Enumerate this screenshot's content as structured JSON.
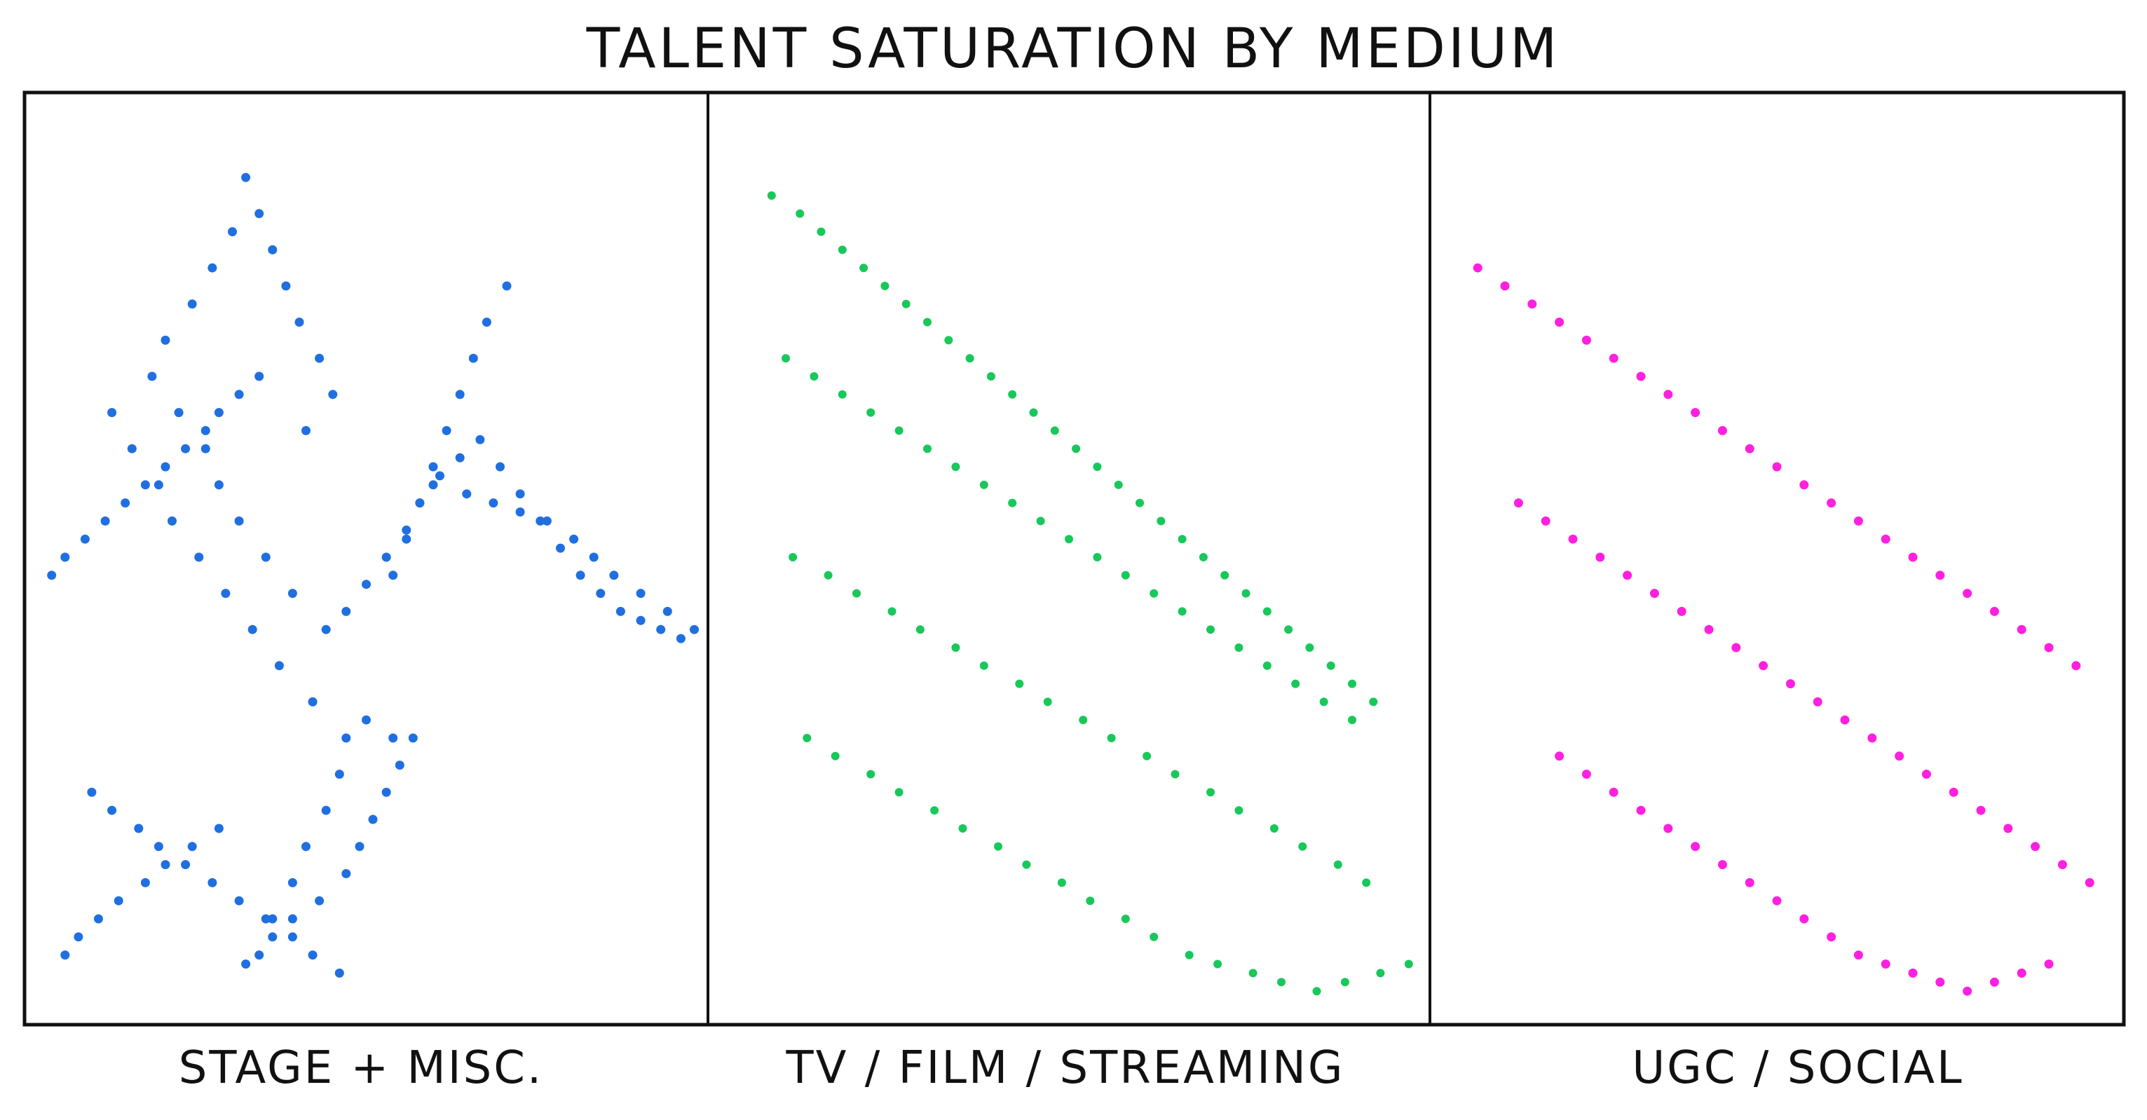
{
  "chart_data": {
    "type": "scatter",
    "title": "TALENT SATURATION BY MEDIUM",
    "xlabel": "",
    "ylabel": "",
    "grid": false,
    "legend": "none",
    "panels": [
      {
        "label": "STAGE + MISC.",
        "color": "#1f6fe0",
        "x_range": [
          0,
          1
        ],
        "y_range": [
          0,
          1
        ]
      },
      {
        "label": "TV / FILM / STREAMING",
        "color": "#18c85a",
        "x_range": [
          0,
          1
        ],
        "y_range": [
          0,
          1
        ]
      },
      {
        "label": "UGC / SOCIAL",
        "color": "#ff1fe0",
        "x_range": [
          0,
          1
        ],
        "y_range": [
          0,
          1
        ]
      }
    ],
    "series": [
      {
        "name": "STAGE + MISC.",
        "color": "#1f6fe0",
        "x": [
          0.32,
          0.34,
          0.36,
          0.38,
          0.4,
          0.43,
          0.45,
          0.41,
          0.3,
          0.27,
          0.24,
          0.2,
          0.18,
          0.22,
          0.26,
          0.28,
          0.31,
          0.35,
          0.39,
          0.44,
          0.47,
          0.5,
          0.53,
          0.56,
          0.58,
          0.61,
          0.64,
          0.67,
          0.7,
          0.73,
          0.76,
          0.79,
          0.82,
          0.85,
          0.88,
          0.91,
          0.94,
          0.97,
          0.71,
          0.68,
          0.66,
          0.64,
          0.62,
          0.6,
          0.58,
          0.56,
          0.54,
          0.6,
          0.65,
          0.69,
          0.73,
          0.77,
          0.81,
          0.84,
          0.87,
          0.91,
          0.95,
          0.99,
          0.57,
          0.55,
          0.53,
          0.51,
          0.49,
          0.47,
          0.43,
          0.39,
          0.36,
          0.34,
          0.32,
          0.28,
          0.24,
          0.2,
          0.17,
          0.13,
          0.1,
          0.07,
          0.05,
          0.09,
          0.12,
          0.16,
          0.19,
          0.23,
          0.27,
          0.31,
          0.35,
          0.39,
          0.42,
          0.46,
          0.5,
          0.54,
          0.12,
          0.15,
          0.19,
          0.21,
          0.25,
          0.29,
          0.33,
          0.37,
          0.42,
          0.47,
          0.46,
          0.44,
          0.41,
          0.39,
          0.36,
          0.34,
          0.31,
          0.28,
          0.26,
          0.23,
          0.2,
          0.17,
          0.14,
          0.11,
          0.08,
          0.05,
          0.03
        ],
        "y": [
          0.92,
          0.88,
          0.84,
          0.8,
          0.76,
          0.72,
          0.68,
          0.64,
          0.86,
          0.82,
          0.78,
          0.74,
          0.7,
          0.66,
          0.62,
          0.58,
          0.54,
          0.5,
          0.46,
          0.42,
          0.44,
          0.47,
          0.5,
          0.53,
          0.56,
          0.59,
          0.61,
          0.63,
          0.6,
          0.57,
          0.54,
          0.51,
          0.48,
          0.46,
          0.44,
          0.43,
          0.42,
          0.41,
          0.8,
          0.76,
          0.72,
          0.68,
          0.64,
          0.6,
          0.56,
          0.52,
          0.48,
          0.58,
          0.57,
          0.56,
          0.55,
          0.54,
          0.52,
          0.5,
          0.48,
          0.46,
          0.44,
          0.42,
          0.3,
          0.27,
          0.24,
          0.21,
          0.18,
          0.15,
          0.12,
          0.1,
          0.08,
          0.06,
          0.05,
          0.2,
          0.18,
          0.16,
          0.14,
          0.12,
          0.1,
          0.08,
          0.06,
          0.24,
          0.22,
          0.2,
          0.18,
          0.16,
          0.14,
          0.12,
          0.1,
          0.08,
          0.06,
          0.04,
          0.32,
          0.3,
          0.66,
          0.62,
          0.58,
          0.54,
          0.5,
          0.46,
          0.42,
          0.38,
          0.34,
          0.3,
          0.26,
          0.22,
          0.18,
          0.14,
          0.1,
          0.7,
          0.68,
          0.66,
          0.64,
          0.62,
          0.6,
          0.58,
          0.56,
          0.54,
          0.52,
          0.5,
          0.48
        ]
      },
      {
        "name": "TV / FILM / STREAMING",
        "color": "#18c85a",
        "x": [
          0.08,
          0.12,
          0.15,
          0.18,
          0.21,
          0.24,
          0.27,
          0.3,
          0.33,
          0.36,
          0.39,
          0.42,
          0.45,
          0.48,
          0.51,
          0.54,
          0.57,
          0.6,
          0.63,
          0.66,
          0.69,
          0.72,
          0.75,
          0.78,
          0.81,
          0.84,
          0.87,
          0.9,
          0.93,
          0.1,
          0.14,
          0.18,
          0.22,
          0.26,
          0.3,
          0.34,
          0.38,
          0.42,
          0.46,
          0.5,
          0.54,
          0.58,
          0.62,
          0.66,
          0.7,
          0.74,
          0.78,
          0.82,
          0.86,
          0.9,
          0.11,
          0.16,
          0.2,
          0.25,
          0.29,
          0.34,
          0.38,
          0.43,
          0.47,
          0.52,
          0.56,
          0.61,
          0.65,
          0.7,
          0.74,
          0.79,
          0.83,
          0.88,
          0.92,
          0.13,
          0.17,
          0.22,
          0.26,
          0.31,
          0.35,
          0.4,
          0.44,
          0.49,
          0.53,
          0.58,
          0.62,
          0.67,
          0.71,
          0.76,
          0.8,
          0.85,
          0.89,
          0.94,
          0.98
        ],
        "y": [
          0.9,
          0.88,
          0.86,
          0.84,
          0.82,
          0.8,
          0.78,
          0.76,
          0.74,
          0.72,
          0.7,
          0.68,
          0.66,
          0.64,
          0.62,
          0.6,
          0.58,
          0.56,
          0.54,
          0.52,
          0.5,
          0.48,
          0.46,
          0.44,
          0.42,
          0.4,
          0.38,
          0.36,
          0.34,
          0.72,
          0.7,
          0.68,
          0.66,
          0.64,
          0.62,
          0.6,
          0.58,
          0.56,
          0.54,
          0.52,
          0.5,
          0.48,
          0.46,
          0.44,
          0.42,
          0.4,
          0.38,
          0.36,
          0.34,
          0.32,
          0.5,
          0.48,
          0.46,
          0.44,
          0.42,
          0.4,
          0.38,
          0.36,
          0.34,
          0.32,
          0.3,
          0.28,
          0.26,
          0.24,
          0.22,
          0.2,
          0.18,
          0.16,
          0.14,
          0.3,
          0.28,
          0.26,
          0.24,
          0.22,
          0.2,
          0.18,
          0.16,
          0.14,
          0.12,
          0.1,
          0.08,
          0.06,
          0.05,
          0.04,
          0.03,
          0.02,
          0.03,
          0.04,
          0.05
        ]
      },
      {
        "name": "UGC / SOCIAL",
        "color": "#ff1fe0",
        "x": [
          0.06,
          0.1,
          0.14,
          0.18,
          0.22,
          0.26,
          0.3,
          0.34,
          0.38,
          0.42,
          0.46,
          0.5,
          0.54,
          0.58,
          0.62,
          0.66,
          0.7,
          0.74,
          0.78,
          0.82,
          0.86,
          0.9,
          0.94,
          0.12,
          0.16,
          0.2,
          0.24,
          0.28,
          0.32,
          0.36,
          0.4,
          0.44,
          0.48,
          0.52,
          0.56,
          0.6,
          0.64,
          0.68,
          0.72,
          0.76,
          0.8,
          0.84,
          0.88,
          0.92,
          0.96,
          0.18,
          0.22,
          0.26,
          0.3,
          0.34,
          0.38,
          0.42,
          0.46,
          0.5,
          0.54,
          0.58,
          0.62,
          0.66,
          0.7,
          0.74,
          0.78,
          0.82,
          0.86,
          0.9
        ],
        "y": [
          0.82,
          0.8,
          0.78,
          0.76,
          0.74,
          0.72,
          0.7,
          0.68,
          0.66,
          0.64,
          0.62,
          0.6,
          0.58,
          0.56,
          0.54,
          0.52,
          0.5,
          0.48,
          0.46,
          0.44,
          0.42,
          0.4,
          0.38,
          0.56,
          0.54,
          0.52,
          0.5,
          0.48,
          0.46,
          0.44,
          0.42,
          0.4,
          0.38,
          0.36,
          0.34,
          0.32,
          0.3,
          0.28,
          0.26,
          0.24,
          0.22,
          0.2,
          0.18,
          0.16,
          0.14,
          0.28,
          0.26,
          0.24,
          0.22,
          0.2,
          0.18,
          0.16,
          0.14,
          0.12,
          0.1,
          0.08,
          0.06,
          0.05,
          0.04,
          0.03,
          0.02,
          0.03,
          0.04,
          0.05
        ]
      }
    ]
  }
}
